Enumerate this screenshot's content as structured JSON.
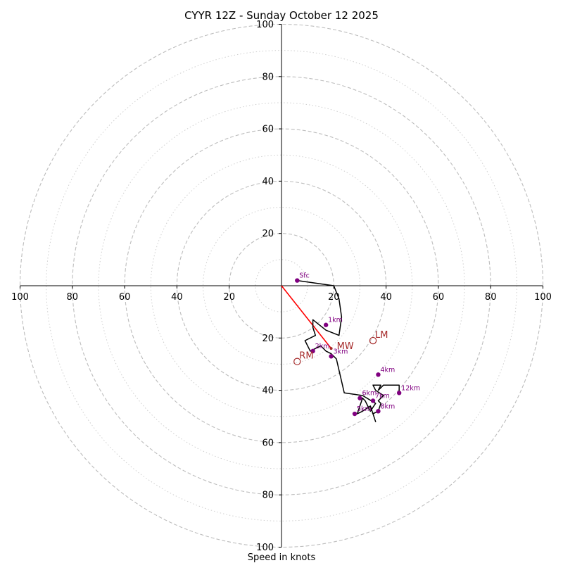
{
  "chart_data": {
    "type": "line",
    "subtype": "hodograph",
    "title": "CYYR 12Z - Sunday October 12 2025",
    "xlabel": "Speed in knots",
    "ylabel": "",
    "xlim": [
      -100,
      100
    ],
    "ylim": [
      -100,
      100
    ],
    "rings_major": [
      20,
      40,
      60,
      80,
      100
    ],
    "rings_minor": [
      10,
      30,
      50,
      70,
      90
    ],
    "x_tick_labels": [
      "100",
      "80",
      "60",
      "40",
      "20",
      "20",
      "40",
      "60",
      "80",
      "100"
    ],
    "y_tick_labels": [
      "100",
      "80",
      "60",
      "40",
      "20",
      "20",
      "40",
      "60",
      "80",
      "100"
    ],
    "x_tick_values": [
      -100,
      -80,
      -60,
      -40,
      -20,
      20,
      40,
      60,
      80,
      100
    ],
    "y_tick_values": [
      100,
      80,
      60,
      40,
      20,
      -20,
      -40,
      -60,
      -80,
      -100
    ],
    "trace": {
      "name": "wind profile",
      "color": "#000000",
      "u": [
        6,
        20,
        22,
        23,
        22,
        17,
        12,
        12,
        13,
        9,
        11,
        15,
        17,
        19,
        21,
        24,
        31,
        36,
        34,
        32,
        31,
        30,
        29,
        31,
        34,
        36,
        35,
        37,
        38,
        37,
        39,
        36,
        35,
        38,
        37,
        39,
        45,
        45
      ],
      "v": [
        2,
        0,
        -5,
        -12,
        -19,
        -17,
        -13,
        -16,
        -19,
        -21,
        -25,
        -23,
        -25,
        -26,
        -28,
        -41,
        -42,
        -45,
        -48,
        -44,
        -43,
        -46,
        -49,
        -48,
        -46,
        -52,
        -49,
        -48,
        -45,
        -44,
        -42,
        -40,
        -38,
        -38,
        -40,
        -38,
        -38,
        -41
      ]
    },
    "height_markers": {
      "color": "#800080",
      "points": [
        {
          "label": "Sfc",
          "u": 6,
          "v": 2
        },
        {
          "label": "1km",
          "u": 17,
          "v": -15
        },
        {
          "label": "2km",
          "u": 12,
          "v": -25
        },
        {
          "label": "3km",
          "u": 19,
          "v": -27
        },
        {
          "label": "4km",
          "u": 37,
          "v": -34
        },
        {
          "label": "5km",
          "u": 28,
          "v": -49
        },
        {
          "label": "6km",
          "u": 30,
          "v": -43
        },
        {
          "label": "7km",
          "u": 35,
          "v": -44
        },
        {
          "label": "8km",
          "u": 37,
          "v": -48
        },
        {
          "label": "12km",
          "u": 45,
          "v": -41
        }
      ]
    },
    "storm_motion": {
      "color": "#a52a2a",
      "line_color": "#ff0000",
      "mean_wind": {
        "label": "MW",
        "u": 19,
        "v": -24
      },
      "right_mover": {
        "label": "RM",
        "u": 6,
        "v": -29
      },
      "left_mover": {
        "label": "LM",
        "u": 35,
        "v": -21
      }
    }
  }
}
